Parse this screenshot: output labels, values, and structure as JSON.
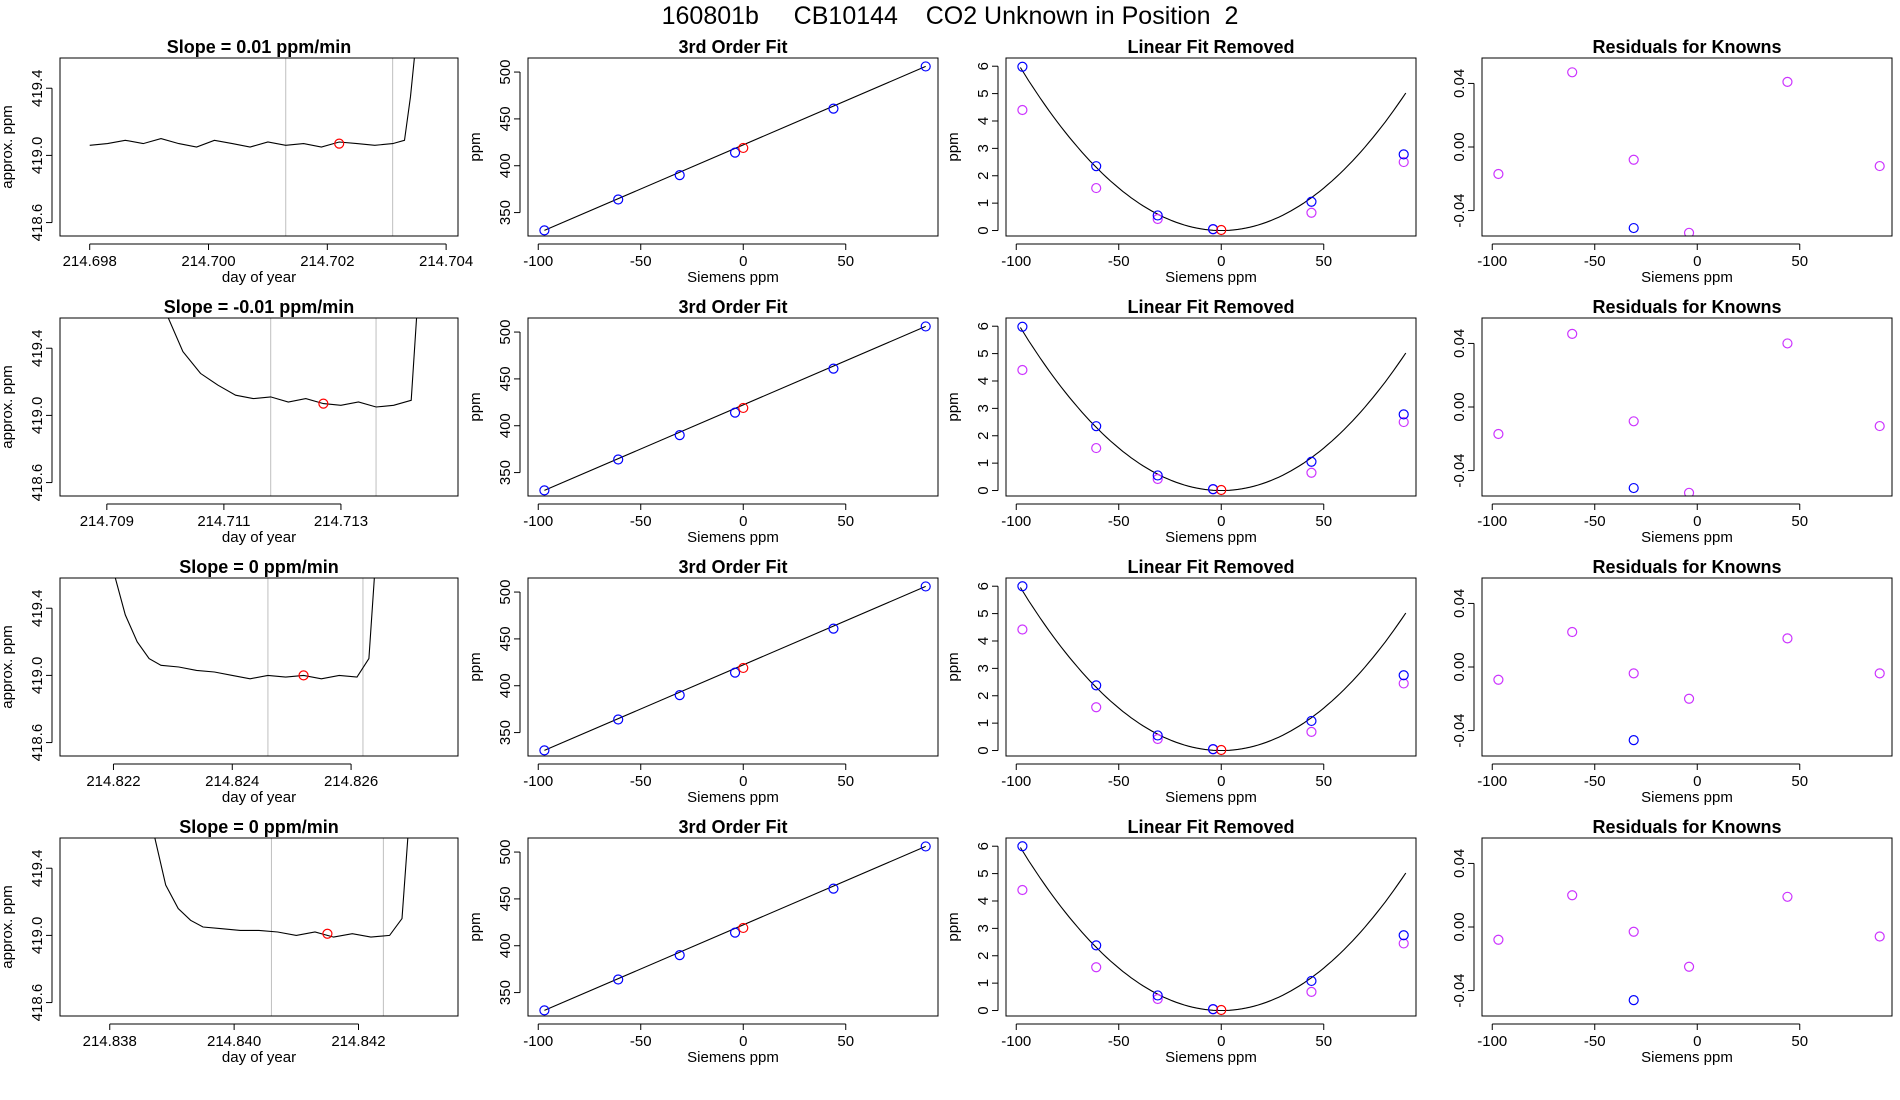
{
  "figure": {
    "title": "160801b     CB10144    CO2 Unknown in Position  2"
  },
  "chart_data": [
    {
      "type": "line",
      "panel": "time-trace",
      "row": 1,
      "title": "Slope =  0.01  ppm/min",
      "xlabel": "day of year",
      "ylabel": "approx. ppm",
      "xlim": [
        214.6975,
        214.7042
      ],
      "ylim": [
        418.52,
        419.58
      ],
      "xticks": [
        214.698,
        214.7,
        214.702,
        214.704
      ],
      "yticks": [
        418.6,
        419.0,
        419.4
      ],
      "series": [
        {
          "x": [
            214.698,
            214.6983,
            214.6986,
            214.6989,
            214.6992,
            214.6995,
            214.6998,
            214.7001,
            214.7004,
            214.7007,
            214.701,
            214.7013,
            214.7016,
            214.7019,
            214.7022,
            214.7025,
            214.7028,
            214.7031,
            214.7033,
            214.7034,
            214.7035
          ],
          "y": [
            419.06,
            419.07,
            419.09,
            419.07,
            419.1,
            419.07,
            419.05,
            419.09,
            419.07,
            419.05,
            419.08,
            419.06,
            419.07,
            419.05,
            419.08,
            419.07,
            419.06,
            419.07,
            419.09,
            419.35,
            419.7
          ]
        }
      ],
      "vlines": [
        214.7013,
        214.7031
      ],
      "highlight_point": {
        "x": 214.7022,
        "y": 419.07
      }
    },
    {
      "type": "scatter",
      "panel": "third-order-fit",
      "row": 1,
      "title": "3rd Order Fit",
      "xlabel": "Siemens ppm",
      "ylabel": "ppm",
      "xlim": [
        -105,
        95
      ],
      "ylim": [
        325,
        515
      ],
      "xticks": [
        -100,
        -50,
        0,
        50
      ],
      "yticks": [
        350,
        400,
        450,
        500
      ],
      "standards": {
        "x": [
          -97,
          -61,
          -31,
          -4,
          44,
          89
        ],
        "y": [
          331,
          364,
          390,
          414,
          461,
          506
        ]
      },
      "unknown": {
        "x": [
          0
        ],
        "y": [
          419
        ]
      },
      "fit_line": {
        "x": [
          -97,
          89
        ],
        "y": [
          331,
          506
        ]
      }
    },
    {
      "type": "scatter",
      "panel": "linear-fit-removed",
      "row": 1,
      "title": "Linear Fit Removed",
      "xlabel": "Siemens ppm",
      "ylabel": "ppm",
      "xlim": [
        -105,
        95
      ],
      "ylim": [
        -0.2,
        6.3
      ],
      "xticks": [
        -100,
        -50,
        0,
        50
      ],
      "yticks": [
        0,
        1,
        2,
        3,
        4,
        5,
        6
      ],
      "standards": {
        "x": [
          -97,
          -61,
          -31,
          -4,
          44,
          89
        ],
        "y": [
          5.98,
          2.35,
          0.55,
          0.05,
          1.05,
          2.78
        ]
      },
      "residual_points": {
        "x": [
          -97,
          -61,
          -31,
          -4,
          44,
          89
        ],
        "y": [
          4.4,
          1.55,
          0.42,
          0.04,
          0.65,
          2.5
        ]
      },
      "unknown": {
        "x": [
          0
        ],
        "y": [
          0.02
        ]
      },
      "curve_coefficient": 0.00062
    },
    {
      "type": "scatter",
      "panel": "residuals",
      "row": 1,
      "title": "Residuals for Knowns",
      "xlabel": "Siemens ppm",
      "ylabel": "",
      "xlim": [
        -105,
        95
      ],
      "ylim": [
        -0.056,
        0.056
      ],
      "xticks": [
        -100,
        -50,
        0,
        50
      ],
      "yticks": [
        -0.04,
        0.0,
        0.04
      ],
      "yticklabels": [
        "-0.04",
        "0.00",
        "0.04"
      ],
      "points": {
        "x": [
          -97,
          -61,
          -31,
          -4,
          44,
          89
        ],
        "y": [
          -0.017,
          0.047,
          -0.008,
          -0.054,
          0.041,
          -0.012
        ]
      },
      "blue_points": {
        "x": [
          -31
        ],
        "y": [
          -0.051
        ]
      }
    },
    {
      "type": "line",
      "panel": "time-trace",
      "row": 2,
      "title": "Slope =  -0.01  ppm/min",
      "xlabel": "day of year",
      "ylabel": "approx. ppm",
      "xlim": [
        214.7082,
        214.715
      ],
      "ylim": [
        418.52,
        419.58
      ],
      "xticks": [
        214.709,
        214.711,
        214.713
      ],
      "yticks": [
        418.6,
        419.0,
        419.4
      ],
      "series": [
        {
          "x": [
            214.71,
            214.7103,
            214.7106,
            214.7109,
            214.7112,
            214.7115,
            214.7118,
            214.7121,
            214.7124,
            214.7127,
            214.713,
            214.7133,
            214.7136,
            214.7139,
            214.7142,
            214.7143
          ],
          "y": [
            419.62,
            419.38,
            419.25,
            419.18,
            419.12,
            419.1,
            419.11,
            419.08,
            419.1,
            419.07,
            419.06,
            419.08,
            419.05,
            419.06,
            419.09,
            419.62
          ]
        }
      ],
      "vlines": [
        214.7118,
        214.7136
      ],
      "highlight_point": {
        "x": 214.7127,
        "y": 419.07
      }
    },
    {
      "type": "scatter",
      "panel": "third-order-fit",
      "row": 2,
      "title": "3rd Order Fit",
      "xlabel": "Siemens ppm",
      "ylabel": "ppm",
      "xlim": [
        -105,
        95
      ],
      "ylim": [
        325,
        515
      ],
      "xticks": [
        -100,
        -50,
        0,
        50
      ],
      "yticks": [
        350,
        400,
        450,
        500
      ],
      "standards": {
        "x": [
          -97,
          -61,
          -31,
          -4,
          44,
          89
        ],
        "y": [
          331,
          364,
          390,
          414,
          461,
          506
        ]
      },
      "unknown": {
        "x": [
          0
        ],
        "y": [
          419
        ]
      },
      "fit_line": {
        "x": [
          -97,
          89
        ],
        "y": [
          331,
          506
        ]
      }
    },
    {
      "type": "scatter",
      "panel": "linear-fit-removed",
      "row": 2,
      "title": "Linear Fit Removed",
      "xlabel": "Siemens ppm",
      "ylabel": "ppm",
      "xlim": [
        -105,
        95
      ],
      "ylim": [
        -0.2,
        6.3
      ],
      "xticks": [
        -100,
        -50,
        0,
        50
      ],
      "yticks": [
        0,
        1,
        2,
        3,
        4,
        5,
        6
      ],
      "standards": {
        "x": [
          -97,
          -61,
          -31,
          -4,
          44,
          89
        ],
        "y": [
          5.98,
          2.35,
          0.55,
          0.05,
          1.05,
          2.78
        ]
      },
      "residual_points": {
        "x": [
          -97,
          -61,
          -31,
          -4,
          44,
          89
        ],
        "y": [
          4.4,
          1.55,
          0.42,
          0.04,
          0.65,
          2.5
        ]
      },
      "unknown": {
        "x": [
          0
        ],
        "y": [
          0.02
        ]
      },
      "curve_coefficient": 0.00062
    },
    {
      "type": "scatter",
      "panel": "residuals",
      "row": 2,
      "title": "Residuals for Knowns",
      "xlabel": "Siemens ppm",
      "ylabel": "",
      "xlim": [
        -105,
        95
      ],
      "ylim": [
        -0.056,
        0.056
      ],
      "xticks": [
        -100,
        -50,
        0,
        50
      ],
      "yticks": [
        -0.04,
        0.0,
        0.04
      ],
      "yticklabels": [
        "-0.04",
        "0.00",
        "0.04"
      ],
      "points": {
        "x": [
          -97,
          -61,
          -31,
          -4,
          44,
          89
        ],
        "y": [
          -0.017,
          0.046,
          -0.009,
          -0.054,
          0.04,
          -0.012
        ]
      },
      "blue_points": {
        "x": [
          -31
        ],
        "y": [
          -0.051
        ]
      }
    },
    {
      "type": "line",
      "panel": "time-trace",
      "row": 3,
      "title": "Slope =  0  ppm/min",
      "xlabel": "day of year",
      "ylabel": "approx. ppm",
      "xlim": [
        214.8211,
        214.8278
      ],
      "ylim": [
        418.52,
        419.58
      ],
      "xticks": [
        214.822,
        214.824,
        214.826
      ],
      "yticks": [
        418.6,
        419.0,
        419.4
      ],
      "series": [
        {
          "x": [
            214.822,
            214.8222,
            214.8224,
            214.8226,
            214.8228,
            214.8231,
            214.8234,
            214.8237,
            214.824,
            214.8243,
            214.8246,
            214.8249,
            214.8252,
            214.8255,
            214.8258,
            214.8261,
            214.8263,
            214.8264
          ],
          "y": [
            419.62,
            419.36,
            419.2,
            419.1,
            419.06,
            419.05,
            419.03,
            419.02,
            419.0,
            418.98,
            419.0,
            418.99,
            419.0,
            418.98,
            419.0,
            418.99,
            419.1,
            419.62
          ]
        }
      ],
      "vlines": [
        214.8246,
        214.8262
      ],
      "highlight_point": {
        "x": 214.8252,
        "y": 419.0
      }
    },
    {
      "type": "scatter",
      "panel": "third-order-fit",
      "row": 3,
      "title": "3rd Order Fit",
      "xlabel": "Siemens ppm",
      "ylabel": "ppm",
      "xlim": [
        -105,
        95
      ],
      "ylim": [
        325,
        515
      ],
      "xticks": [
        -100,
        -50,
        0,
        50
      ],
      "yticks": [
        350,
        400,
        450,
        500
      ],
      "standards": {
        "x": [
          -97,
          -61,
          -31,
          -4,
          44,
          89
        ],
        "y": [
          331,
          364,
          390,
          414,
          461,
          506
        ]
      },
      "unknown": {
        "x": [
          0
        ],
        "y": [
          419
        ]
      },
      "fit_line": {
        "x": [
          -97,
          89
        ],
        "y": [
          331,
          506
        ]
      }
    },
    {
      "type": "scatter",
      "panel": "linear-fit-removed",
      "row": 3,
      "title": "Linear Fit Removed",
      "xlabel": "Siemens ppm",
      "ylabel": "ppm",
      "xlim": [
        -105,
        95
      ],
      "ylim": [
        -0.2,
        6.3
      ],
      "xticks": [
        -100,
        -50,
        0,
        50
      ],
      "yticks": [
        0,
        1,
        2,
        3,
        4,
        5,
        6
      ],
      "standards": {
        "x": [
          -97,
          -61,
          -31,
          -4,
          44,
          89
        ],
        "y": [
          6.0,
          2.38,
          0.55,
          0.05,
          1.08,
          2.75
        ]
      },
      "residual_points": {
        "x": [
          -97,
          -61,
          -31,
          -4,
          44,
          89
        ],
        "y": [
          4.42,
          1.58,
          0.42,
          0.04,
          0.68,
          2.45
        ]
      },
      "unknown": {
        "x": [
          0
        ],
        "y": [
          0.02
        ]
      },
      "curve_coefficient": 0.00062
    },
    {
      "type": "scatter",
      "panel": "residuals",
      "row": 3,
      "title": "Residuals for Knowns",
      "xlabel": "Siemens ppm",
      "ylabel": "",
      "xlim": [
        -105,
        95
      ],
      "ylim": [
        -0.056,
        0.056
      ],
      "xticks": [
        -100,
        -50,
        0,
        50
      ],
      "yticks": [
        -0.04,
        0.0,
        0.04
      ],
      "yticklabels": [
        "-0.04",
        "0.00",
        "0.04"
      ],
      "points": {
        "x": [
          -97,
          -61,
          -31,
          -4,
          44,
          89
        ],
        "y": [
          -0.008,
          0.022,
          -0.004,
          -0.02,
          0.018,
          -0.004
        ]
      },
      "blue_points": {
        "x": [
          -31
        ],
        "y": [
          -0.046
        ]
      }
    },
    {
      "type": "line",
      "panel": "time-trace",
      "row": 4,
      "title": "Slope =  0  ppm/min",
      "xlabel": "day of year",
      "ylabel": "approx. ppm",
      "xlim": [
        214.8372,
        214.8436
      ],
      "ylim": [
        418.52,
        419.58
      ],
      "xticks": [
        214.838,
        214.84,
        214.842
      ],
      "yticks": [
        418.6,
        419.0,
        419.4
      ],
      "series": [
        {
          "x": [
            214.8387,
            214.8389,
            214.8391,
            214.8393,
            214.8395,
            214.8398,
            214.8401,
            214.8404,
            214.8407,
            214.841,
            214.8413,
            214.8416,
            214.8419,
            214.8422,
            214.8425,
            214.8427,
            214.8428
          ],
          "y": [
            419.62,
            419.3,
            419.16,
            419.09,
            419.05,
            419.04,
            419.03,
            419.03,
            419.02,
            419.0,
            419.02,
            418.99,
            419.01,
            418.99,
            419.0,
            419.1,
            419.62
          ]
        }
      ],
      "vlines": [
        214.8406,
        214.8424
      ],
      "highlight_point": {
        "x": 214.8415,
        "y": 419.01
      }
    },
    {
      "type": "scatter",
      "panel": "third-order-fit",
      "row": 4,
      "title": "3rd Order Fit",
      "xlabel": "Siemens ppm",
      "ylabel": "ppm",
      "xlim": [
        -105,
        95
      ],
      "ylim": [
        325,
        515
      ],
      "xticks": [
        -100,
        -50,
        0,
        50
      ],
      "yticks": [
        350,
        400,
        450,
        500
      ],
      "standards": {
        "x": [
          -97,
          -61,
          -31,
          -4,
          44,
          89
        ],
        "y": [
          331,
          364,
          390,
          414,
          461,
          506
        ]
      },
      "unknown": {
        "x": [
          0
        ],
        "y": [
          419
        ]
      },
      "fit_line": {
        "x": [
          -97,
          89
        ],
        "y": [
          331,
          506
        ]
      }
    },
    {
      "type": "scatter",
      "panel": "linear-fit-removed",
      "row": 4,
      "title": "Linear Fit Removed",
      "xlabel": "Siemens ppm",
      "ylabel": "ppm",
      "xlim": [
        -105,
        95
      ],
      "ylim": [
        -0.2,
        6.3
      ],
      "xticks": [
        -100,
        -50,
        0,
        50
      ],
      "yticks": [
        0,
        1,
        2,
        3,
        4,
        5,
        6
      ],
      "standards": {
        "x": [
          -97,
          -61,
          -31,
          -4,
          44,
          89
        ],
        "y": [
          6.0,
          2.38,
          0.55,
          0.05,
          1.08,
          2.75
        ]
      },
      "residual_points": {
        "x": [
          -97,
          -61,
          -31,
          -4,
          44,
          89
        ],
        "y": [
          4.4,
          1.58,
          0.42,
          0.04,
          0.68,
          2.45
        ]
      },
      "unknown": {
        "x": [
          0
        ],
        "y": [
          0.02
        ]
      },
      "curve_coefficient": 0.00062
    },
    {
      "type": "scatter",
      "panel": "residuals",
      "row": 4,
      "title": "Residuals for Knowns",
      "xlabel": "Siemens ppm",
      "ylabel": "",
      "xlim": [
        -105,
        95
      ],
      "ylim": [
        -0.056,
        0.056
      ],
      "xticks": [
        -100,
        -50,
        0,
        50
      ],
      "yticks": [
        -0.04,
        0.0,
        0.04
      ],
      "yticklabels": [
        "-0.04",
        "0.00",
        "0.04"
      ],
      "points": {
        "x": [
          -97,
          -61,
          -31,
          -4,
          44,
          89
        ],
        "y": [
          -0.008,
          0.02,
          -0.003,
          -0.025,
          0.019,
          -0.006
        ]
      },
      "blue_points": {
        "x": [
          -31
        ],
        "y": [
          -0.046
        ]
      }
    }
  ],
  "colors": {
    "standards": "#0000ff",
    "residuals": "#cc33ff",
    "unknown": "#ff0000",
    "line": "#000000",
    "vlines": "#bfbfbf"
  }
}
